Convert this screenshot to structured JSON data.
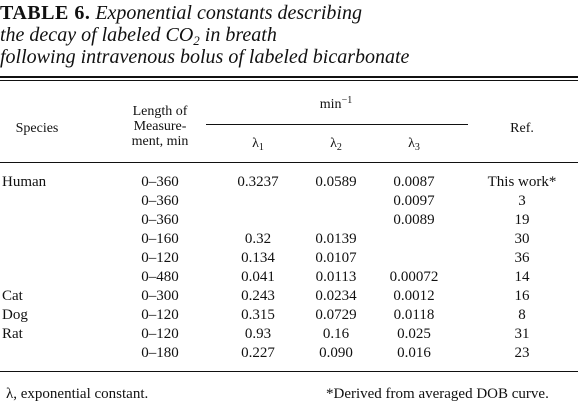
{
  "caption": {
    "label": "TABLE 6.",
    "line1": "Exponential constants describing",
    "line2_pre": "the decay of labeled CO",
    "line2_sub": "2",
    "line2_post": " in breath",
    "line3": "following intravenous bolus of labeled bicarbonate"
  },
  "headers": {
    "species": "Species",
    "length_line1": "Length of",
    "length_line2": "Measure-",
    "length_line3": "ment, min",
    "group_base": "min",
    "group_exp": "−1",
    "lambda": "λ",
    "l1_sub": "1",
    "l2_sub": "2",
    "l3_sub": "3",
    "ref": "Ref."
  },
  "rows": [
    {
      "species": "Human",
      "range": "0–360",
      "l1": "0.3237",
      "l2": "0.0589",
      "l3": "0.0087",
      "ref": "This work*"
    },
    {
      "species": "",
      "range": "0–360",
      "l1": "",
      "l2": "",
      "l3": "0.0097",
      "ref": "3"
    },
    {
      "species": "",
      "range": "0–360",
      "l1": "",
      "l2": "",
      "l3": "0.0089",
      "ref": "19"
    },
    {
      "species": "",
      "range": "0–160",
      "l1": "0.32",
      "l2": "0.0139",
      "l3": "",
      "ref": "30"
    },
    {
      "species": "",
      "range": "0–120",
      "l1": "0.134",
      "l2": "0.0107",
      "l3": "",
      "ref": "36"
    },
    {
      "species": "",
      "range": "0–480",
      "l1": "0.041",
      "l2": "0.0113",
      "l3": "0.00072",
      "ref": "14"
    },
    {
      "species": "Cat",
      "range": "0–300",
      "l1": "0.243",
      "l2": "0.0234",
      "l3": "0.0012",
      "ref": "16"
    },
    {
      "species": "Dog",
      "range": "0–120",
      "l1": "0.315",
      "l2": "0.0729",
      "l3": "0.0118",
      "ref": "8"
    },
    {
      "species": "Rat",
      "range": "0–120",
      "l1": "0.93",
      "l2": "0.16",
      "l3": "0.025",
      "ref": "31"
    },
    {
      "species": "",
      "range": "0–180",
      "l1": "0.227",
      "l2": "0.090",
      "l3": "0.016",
      "ref": "23"
    }
  ],
  "footnotes": {
    "lambda_note": "λ, exponential constant.",
    "star_note": "*Derived from averaged DOB curve."
  }
}
